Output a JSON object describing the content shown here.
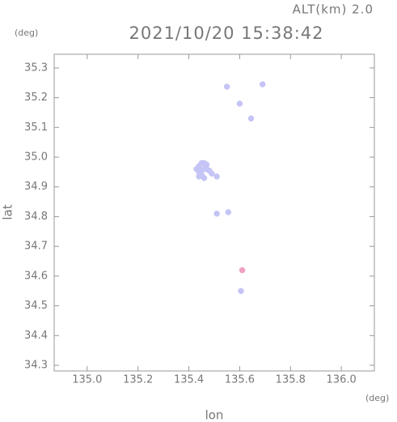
{
  "chart_data": {
    "type": "scatter",
    "title": "2021/10/20 15:38:42",
    "annotation": "ALT(km) 2.0",
    "x_label": "lon",
    "y_label": "lat",
    "x_unit": "(deg)",
    "y_unit": "(deg)",
    "xlim": [
      134.87,
      136.13
    ],
    "ylim": [
      34.281,
      35.346
    ],
    "xticks": [
      {
        "value": 135,
        "label": "135.0"
      },
      135.2,
      135.4,
      135.6,
      135.8,
      {
        "value": 136,
        "label": "136.0"
      }
    ],
    "yticks": [
      34.3,
      34.4,
      34.5,
      34.6,
      34.7,
      34.8,
      34.9,
      {
        "value": 35,
        "label": "35.0"
      },
      35.1,
      35.2,
      35.3
    ],
    "series": [
      {
        "color": "#c4c4f6",
        "x": [
          135.55,
          135.69,
          135.6,
          135.645,
          135.43,
          135.44,
          135.45,
          135.46,
          135.47,
          135.44,
          135.45,
          135.46,
          135.47,
          135.48,
          135.44,
          135.45,
          135.46,
          135.49,
          135.51,
          135.51,
          135.555,
          135.605
        ],
        "y": [
          35.237,
          35.245,
          35.18,
          35.13,
          34.96,
          34.97,
          34.98,
          34.98,
          34.975,
          34.95,
          34.955,
          34.96,
          34.96,
          34.955,
          34.935,
          34.94,
          34.93,
          34.945,
          34.935,
          34.81,
          34.815,
          34.55
        ]
      },
      {
        "color": "#f0a0c0",
        "x": [
          135.61
        ],
        "y": [
          34.62
        ]
      }
    ]
  }
}
